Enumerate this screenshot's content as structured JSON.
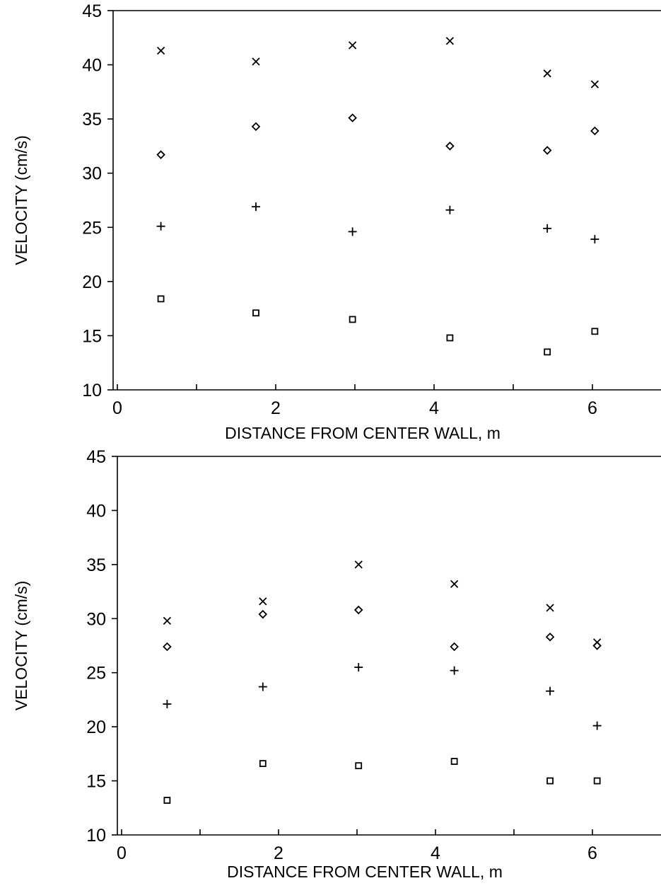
{
  "chart_data": [
    {
      "type": "scatter",
      "title": "",
      "xlabel": "DISTANCE FROM CENTER WALL, m",
      "ylabel": "VELOCITY (cm/s)",
      "xlim": [
        0,
        7
      ],
      "ylim": [
        10,
        45
      ],
      "xticks": [
        0,
        2,
        4,
        6
      ],
      "yticks": [
        10,
        15,
        20,
        25,
        30,
        35,
        40,
        45
      ],
      "grid": false,
      "series": [
        {
          "marker": "x",
          "x": [
            0.55,
            1.75,
            2.97,
            4.2,
            5.43,
            6.03
          ],
          "y": [
            41.3,
            40.3,
            41.8,
            42.2,
            39.2,
            38.2
          ]
        },
        {
          "marker": "diamond",
          "x": [
            0.55,
            1.75,
            2.97,
            4.2,
            5.43,
            6.03
          ],
          "y": [
            31.7,
            34.3,
            35.1,
            32.5,
            32.1,
            33.9
          ]
        },
        {
          "marker": "plus",
          "x": [
            0.55,
            1.75,
            2.97,
            4.2,
            5.43,
            6.03
          ],
          "y": [
            25.1,
            26.9,
            24.6,
            26.6,
            24.9,
            23.9
          ]
        },
        {
          "marker": "square",
          "x": [
            0.55,
            1.75,
            2.97,
            4.2,
            5.43,
            6.03
          ],
          "y": [
            18.4,
            17.1,
            16.5,
            14.8,
            13.5,
            15.4
          ]
        }
      ]
    },
    {
      "type": "scatter",
      "title": "",
      "xlabel": "DISTANCE FROM CENTER WALL, m",
      "ylabel": "VELOCITY (cm/s)",
      "xlim": [
        0,
        7
      ],
      "ylim": [
        10,
        45
      ],
      "xticks": [
        0,
        2,
        4,
        6
      ],
      "yticks": [
        10,
        15,
        20,
        25,
        30,
        35,
        40,
        45
      ],
      "grid": false,
      "series": [
        {
          "marker": "x",
          "x": [
            0.58,
            1.8,
            3.02,
            4.24,
            5.46,
            6.06
          ],
          "y": [
            29.8,
            31.6,
            35.0,
            33.2,
            31.0,
            27.8
          ]
        },
        {
          "marker": "diamond",
          "x": [
            0.58,
            1.8,
            3.02,
            4.24,
            5.46,
            6.06
          ],
          "y": [
            27.4,
            30.4,
            30.8,
            27.4,
            28.3,
            27.5
          ]
        },
        {
          "marker": "plus",
          "x": [
            0.58,
            1.8,
            3.02,
            4.24,
            5.46,
            6.06
          ],
          "y": [
            22.1,
            23.7,
            25.5,
            25.2,
            23.3,
            20.1
          ]
        },
        {
          "marker": "square",
          "x": [
            0.58,
            1.8,
            3.02,
            4.24,
            5.46,
            6.06
          ],
          "y": [
            13.2,
            16.6,
            16.4,
            16.8,
            15.0,
            15.0
          ]
        }
      ]
    }
  ]
}
